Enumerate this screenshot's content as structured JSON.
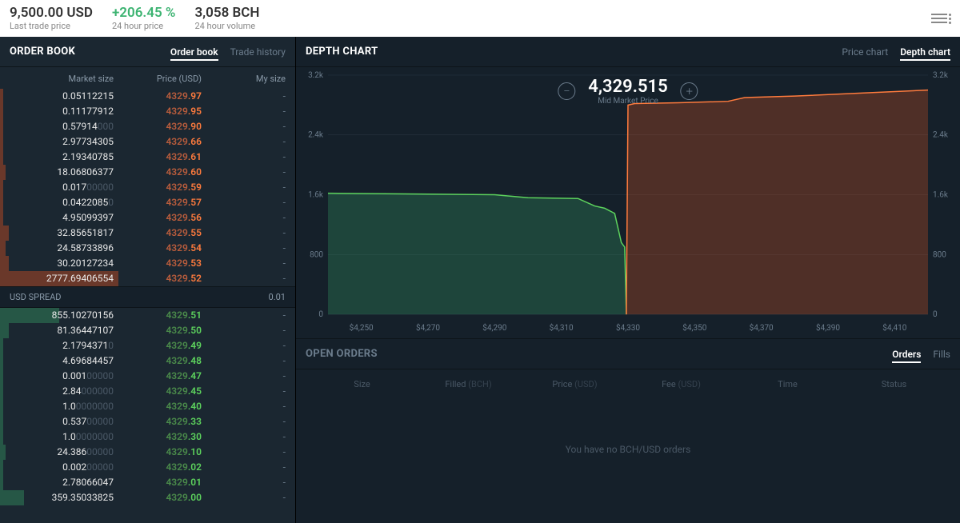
{
  "colors": {
    "bg": "#131c23",
    "panel_left": "#1b2731",
    "panel_right": "#15202a",
    "ask": "#ff7b3d",
    "ask_dim": "#b85c3c",
    "bid": "#5dd35d",
    "bid_dim": "#4a8a4a",
    "text_dim": "#6b7c8c",
    "header_bg": "#ffffff"
  },
  "header": {
    "last_price": "9,500.00 USD",
    "last_price_label": "Last trade price",
    "change_pct": "+206.45 %",
    "change_label": "24 hour price",
    "volume": "3,058 BCH",
    "volume_label": "24 hour volume"
  },
  "order_book": {
    "title": "ORDER BOOK",
    "tabs": {
      "book": "Order book",
      "history": "Trade history"
    },
    "columns": {
      "size": "Market size",
      "price": "Price (USD)",
      "my": "My size"
    },
    "spread_label": "USD SPREAD",
    "spread_value": "0.01",
    "mysize_dash": "-",
    "asks": [
      {
        "size": "0.05112215",
        "dim": "",
        "price_pre": "4329",
        "price_dec": ".97",
        "bar": 1
      },
      {
        "size": "0.11177912",
        "dim": "",
        "price_pre": "4329",
        "price_dec": ".95",
        "bar": 1
      },
      {
        "size": "0.57914",
        "dim": "000",
        "price_pre": "4329",
        "price_dec": ".90",
        "bar": 1
      },
      {
        "size": "2.97734305",
        "dim": "",
        "price_pre": "4329",
        "price_dec": ".66",
        "bar": 1
      },
      {
        "size": "2.19340785",
        "dim": "",
        "price_pre": "4329",
        "price_dec": ".61",
        "bar": 1
      },
      {
        "size": "18.06806377",
        "dim": "",
        "price_pre": "4329",
        "price_dec": ".60",
        "bar": 2
      },
      {
        "size": "0.017",
        "dim": "00000",
        "price_pre": "4329",
        "price_dec": ".59",
        "bar": 1
      },
      {
        "size": "0.0422085",
        "dim": "0",
        "price_pre": "4329",
        "price_dec": ".57",
        "bar": 1
      },
      {
        "size": "4.95099397",
        "dim": "",
        "price_pre": "4329",
        "price_dec": ".56",
        "bar": 1
      },
      {
        "size": "32.85651817",
        "dim": "",
        "price_pre": "4329",
        "price_dec": ".55",
        "bar": 3
      },
      {
        "size": "24.58733896",
        "dim": "",
        "price_pre": "4329",
        "price_dec": ".54",
        "bar": 2
      },
      {
        "size": "30.20127234",
        "dim": "",
        "price_pre": "4329",
        "price_dec": ".53",
        "bar": 3
      },
      {
        "size": "2777.69406554",
        "dim": "",
        "price_pre": "4329",
        "price_dec": ".52",
        "bar": 40
      }
    ],
    "bids": [
      {
        "size": "855.10270156",
        "dim": "",
        "price_pre": "4329",
        "price_dec": ".51",
        "bar": 20
      },
      {
        "size": "81.36447107",
        "dim": "",
        "price_pre": "4329",
        "price_dec": ".50",
        "bar": 3
      },
      {
        "size": "2.1794371",
        "dim": "0",
        "price_pre": "4329",
        "price_dec": ".49",
        "bar": 1
      },
      {
        "size": "4.69684457",
        "dim": "",
        "price_pre": "4329",
        "price_dec": ".48",
        "bar": 1
      },
      {
        "size": "0.001",
        "dim": "00000",
        "price_pre": "4329",
        "price_dec": ".47",
        "bar": 1
      },
      {
        "size": "2.84",
        "dim": "000000",
        "price_pre": "4329",
        "price_dec": ".45",
        "bar": 1
      },
      {
        "size": "1.0",
        "dim": "0000000",
        "price_pre": "4329",
        "price_dec": ".40",
        "bar": 1
      },
      {
        "size": "0.537",
        "dim": "00000",
        "price_pre": "4329",
        "price_dec": ".33",
        "bar": 1
      },
      {
        "size": "1.0",
        "dim": "0000000",
        "price_pre": "4329",
        "price_dec": ".30",
        "bar": 1
      },
      {
        "size": "24.386",
        "dim": "00000",
        "price_pre": "4329",
        "price_dec": ".10",
        "bar": 2
      },
      {
        "size": "0.002",
        "dim": "00000",
        "price_pre": "4329",
        "price_dec": ".02",
        "bar": 1
      },
      {
        "size": "2.78066047",
        "dim": "",
        "price_pre": "4329",
        "price_dec": ".01",
        "bar": 1
      },
      {
        "size": "359.35033825",
        "dim": "",
        "price_pre": "4329",
        "price_dec": ".00",
        "bar": 8
      }
    ]
  },
  "depth_chart": {
    "title": "DEPTH CHART",
    "tabs": {
      "price": "Price chart",
      "depth": "Depth chart"
    },
    "mid_price": "4,329.515",
    "mid_label": "Mid Market Price",
    "type": "depth-area",
    "yticks": [
      "0",
      "800",
      "1.6k",
      "2.4k",
      "3.2k"
    ],
    "xticks": [
      "$4,250",
      "$4,270",
      "$4,290",
      "$4,310",
      "$4,330",
      "$4,350",
      "$4,370",
      "$4,390",
      "$4,410"
    ],
    "x_range": [
      4240,
      4420
    ],
    "y_range": [
      0,
      3200
    ],
    "bid_points": [
      [
        4240,
        1620
      ],
      [
        4290,
        1600
      ],
      [
        4300,
        1560
      ],
      [
        4315,
        1550
      ],
      [
        4320,
        1450
      ],
      [
        4323,
        1420
      ],
      [
        4326,
        1350
      ],
      [
        4328,
        960
      ],
      [
        4329,
        900
      ],
      [
        4329.5,
        0
      ]
    ],
    "ask_points": [
      [
        4329.5,
        0
      ],
      [
        4330,
        2800
      ],
      [
        4332,
        2820
      ],
      [
        4345,
        2830
      ],
      [
        4360,
        2850
      ],
      [
        4365,
        2900
      ],
      [
        4380,
        2920
      ],
      [
        4400,
        2960
      ],
      [
        4420,
        3000
      ]
    ],
    "bid_color": "#5dd35d",
    "bid_fill": "rgba(60,179,113,0.25)",
    "ask_color": "#ff7b3d",
    "ask_fill": "rgba(255,90,31,0.25)"
  },
  "open_orders": {
    "title": "OPEN ORDERS",
    "tabs": {
      "orders": "Orders",
      "fills": "Fills"
    },
    "columns": [
      "Size",
      "Filled (BCH)",
      "Price (USD)",
      "Fee (USD)",
      "Time",
      "Status"
    ],
    "empty_text": "You have no BCH/USD orders"
  }
}
